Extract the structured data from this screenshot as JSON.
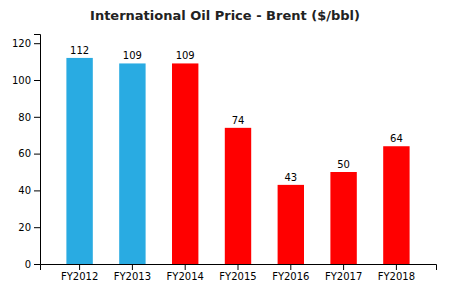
{
  "chart_data": {
    "type": "bar",
    "title": "International Oil Price - Brent ($/bbl)",
    "categories": [
      "FY2012",
      "FY2013",
      "FY2014",
      "FY2015",
      "FY2016",
      "FY2017",
      "FY2018"
    ],
    "values": [
      112,
      109,
      109,
      74,
      43,
      50,
      64
    ],
    "colors": [
      "#29ABE2",
      "#29ABE2",
      "#FF0000",
      "#FF0000",
      "#FF0000",
      "#FF0000",
      "#FF0000"
    ],
    "ylim": [
      0,
      125
    ],
    "yticks": [
      0,
      20,
      40,
      60,
      80,
      100,
      120
    ],
    "grid": false,
    "data_labels": true
  }
}
